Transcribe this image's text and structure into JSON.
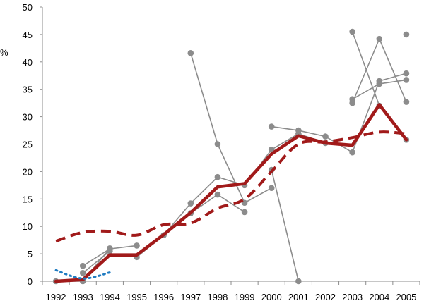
{
  "chart_data": {
    "type": "line",
    "title": "",
    "xlabel": "",
    "ylabel": "%",
    "ylim": [
      0,
      50
    ],
    "yticks": [
      "0",
      "5",
      "10",
      "15",
      "20",
      "25",
      "30",
      "35",
      "40",
      "45",
      "50"
    ],
    "categories": [
      "1992",
      "1993",
      "1994",
      "1995",
      "1996",
      "1997",
      "1998",
      "1999",
      "2000",
      "2001",
      "2002",
      "2003",
      "2004",
      "2005"
    ],
    "grid": false,
    "legend": "none",
    "series": [
      {
        "style": "solid-thick",
        "color": "#a11a1a",
        "values": [
          0,
          0.3,
          4.8,
          4.8,
          8.5,
          12.5,
          17.2,
          17.8,
          23.2,
          26.5,
          25.2,
          24.8,
          32.2,
          25.8
        ]
      },
      {
        "style": "dashed-thick",
        "color": "#a11a1a",
        "values": [
          7.3,
          8.9,
          9.1,
          8.4,
          10.3,
          10.6,
          13.3,
          15.0,
          20.0,
          25.0,
          25.4,
          26.2,
          27.2,
          26.9
        ]
      },
      {
        "style": "dotted",
        "color": "#1f7bc1",
        "values": [
          2.0,
          0.5,
          1.6,
          null,
          null,
          null,
          null,
          null,
          null,
          null,
          null,
          null,
          null,
          null
        ]
      },
      {
        "style": "gray-markers",
        "color": "#8c8c8c",
        "values": [
          0,
          0,
          6.0,
          null,
          null,
          null,
          null,
          null,
          null,
          null,
          null,
          null,
          null,
          null
        ]
      },
      {
        "style": "gray-markers",
        "color": "#8c8c8c",
        "values": [
          null,
          1.5,
          5.5,
          null,
          null,
          null,
          null,
          null,
          null,
          null,
          null,
          null,
          null,
          null
        ]
      },
      {
        "style": "gray-markers",
        "color": "#8c8c8c",
        "values": [
          null,
          2.8,
          5.9,
          6.5,
          null,
          null,
          null,
          null,
          null,
          null,
          null,
          null,
          null,
          null
        ]
      },
      {
        "style": "gray-markers",
        "color": "#8c8c8c",
        "values": [
          null,
          null,
          null,
          4.4,
          8.4,
          14.2,
          19.0,
          17.5,
          24.0,
          26.9,
          25.2,
          null,
          null,
          null
        ]
      },
      {
        "style": "gray-markers",
        "color": "#8c8c8c",
        "values": [
          null,
          null,
          null,
          null,
          null,
          12.4,
          15.8,
          12.6,
          null,
          null,
          null,
          null,
          null,
          null
        ]
      },
      {
        "style": "gray-markers",
        "color": "#8c8c8c",
        "values": [
          null,
          null,
          null,
          null,
          null,
          41.6,
          25.0,
          14.3,
          17.0,
          null,
          null,
          null,
          null,
          null
        ]
      },
      {
        "style": "gray-markers",
        "color": "#8c8c8c",
        "values": [
          null,
          null,
          null,
          null,
          null,
          null,
          null,
          null,
          20.3,
          0,
          null,
          null,
          null,
          null
        ]
      },
      {
        "style": "gray-markers",
        "color": "#8c8c8c",
        "values": [
          null,
          null,
          null,
          null,
          null,
          null,
          null,
          null,
          28.2,
          27.5,
          26.4,
          23.5,
          36.5,
          37.9
        ]
      },
      {
        "style": "gray-markers",
        "color": "#8c8c8c",
        "values": [
          null,
          null,
          null,
          null,
          null,
          null,
          null,
          null,
          null,
          null,
          null,
          45.5,
          32.0,
          25.8
        ]
      },
      {
        "style": "gray-markers",
        "color": "#8c8c8c",
        "values": [
          null,
          null,
          null,
          null,
          null,
          null,
          null,
          null,
          null,
          null,
          null,
          33.2,
          36.0,
          36.7
        ]
      },
      {
        "style": "gray-markers",
        "color": "#8c8c8c",
        "values": [
          null,
          null,
          null,
          null,
          null,
          null,
          null,
          null,
          null,
          null,
          null,
          32.5,
          44.2,
          32.7
        ]
      },
      {
        "style": "gray-markers",
        "color": "#8c8c8c",
        "values": [
          null,
          null,
          null,
          null,
          null,
          null,
          null,
          null,
          null,
          null,
          null,
          null,
          null,
          45.0
        ]
      }
    ]
  }
}
